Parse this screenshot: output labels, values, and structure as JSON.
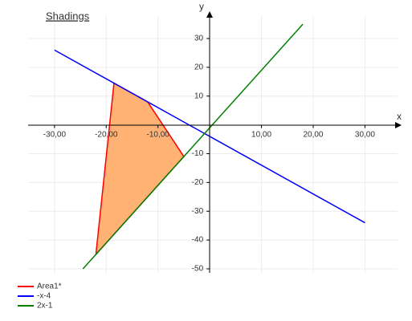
{
  "chart_data": {
    "type": "line",
    "title": "Shadings",
    "xlabel": "x",
    "ylabel": "y",
    "xlim": [
      -35.1,
      36.3
    ],
    "ylim": [
      -51.4,
      39.2
    ],
    "xticks": [
      {
        "value": -30,
        "label": "-30,00"
      },
      {
        "value": -20,
        "label": "-20,00"
      },
      {
        "value": -10,
        "label": "-10,00"
      },
      {
        "value": 10,
        "label": "10,00"
      },
      {
        "value": 20,
        "label": "20,00"
      },
      {
        "value": 30,
        "label": "30,00"
      }
    ],
    "yticks": [
      30,
      20,
      10,
      -10,
      -20,
      -30,
      -40,
      -50
    ],
    "grid": true,
    "legend": "bottom-left",
    "series": [
      {
        "name": "Area1*",
        "color": "#ff0000",
        "fill": "#ffb273",
        "closed": true,
        "x": [
          -18.5,
          -12,
          -5,
          -22
        ],
        "values": [
          14.5,
          8,
          -11,
          -45
        ]
      },
      {
        "name": "-x-4",
        "color": "#0000ff",
        "x": [
          -30,
          30
        ],
        "values": [
          26,
          -34
        ]
      },
      {
        "name": "2x-1",
        "color": "#008000",
        "x": [
          -24.5,
          18
        ],
        "values": [
          -50,
          35
        ]
      }
    ]
  }
}
